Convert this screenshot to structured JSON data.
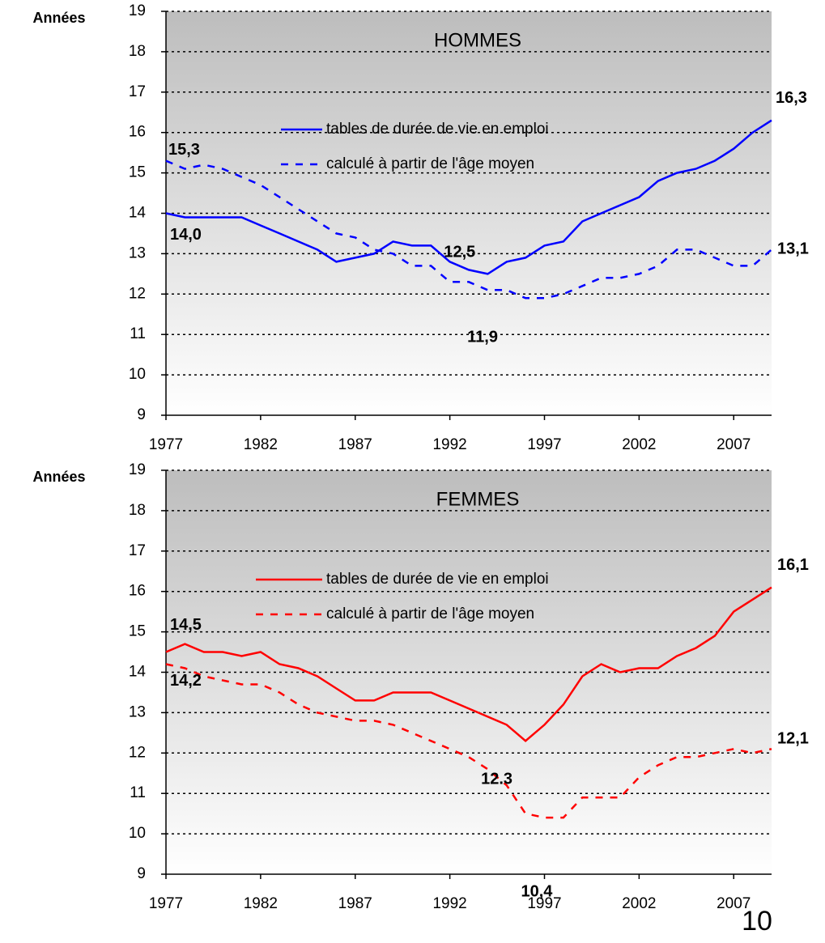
{
  "chart_data": [
    {
      "type": "line",
      "title": "HOMMES",
      "ylabel": "Années",
      "x": [
        1977,
        1978,
        1979,
        1980,
        1981,
        1982,
        1983,
        1984,
        1985,
        1986,
        1987,
        1988,
        1989,
        1990,
        1991,
        1992,
        1993,
        1994,
        1995,
        1996,
        1997,
        1998,
        1999,
        2000,
        2001,
        2002,
        2003,
        2004,
        2005,
        2006,
        2007,
        2008,
        2009
      ],
      "series": [
        {
          "name": "tables de durée de vie en emploi",
          "color": "#0000ff",
          "dashed": false,
          "values": [
            14.0,
            13.9,
            13.9,
            13.9,
            13.9,
            13.7,
            13.5,
            13.3,
            13.1,
            12.8,
            12.9,
            13.0,
            13.3,
            13.2,
            13.2,
            12.8,
            12.6,
            12.5,
            12.8,
            12.9,
            13.2,
            13.3,
            13.8,
            14.0,
            14.2,
            14.4,
            14.8,
            15.0,
            15.1,
            15.3,
            15.6,
            16.0,
            16.3
          ]
        },
        {
          "name": "calculé à partir de l'âge moyen",
          "color": "#0000ff",
          "dashed": true,
          "values": [
            15.3,
            15.1,
            15.2,
            15.1,
            14.9,
            14.7,
            14.4,
            14.1,
            13.8,
            13.5,
            13.4,
            13.1,
            13.0,
            12.7,
            12.7,
            12.3,
            12.3,
            12.1,
            12.1,
            11.9,
            11.9,
            12.0,
            12.2,
            12.4,
            12.4,
            12.5,
            12.7,
            13.1,
            13.1,
            12.9,
            12.7,
            12.7,
            13.1
          ]
        }
      ],
      "annotations": [
        {
          "text": "15,3",
          "x": 1977,
          "y": 15.3
        },
        {
          "text": "14,0",
          "x": 1977,
          "y": 14.0
        },
        {
          "text": "12,5",
          "x": 1994,
          "y": 12.5
        },
        {
          "text": "11,9",
          "x": 1996,
          "y": 11.9
        },
        {
          "text": "16,3",
          "x": 2009,
          "y": 16.3
        },
        {
          "text": "13,1",
          "x": 2009,
          "y": 13.1
        }
      ],
      "xlim": [
        1977,
        2009
      ],
      "xticks": [
        1977,
        1982,
        1987,
        1992,
        1997,
        2002,
        2007
      ],
      "ylim": [
        9,
        19
      ],
      "yticks": [
        9,
        10,
        11,
        12,
        13,
        14,
        15,
        16,
        17,
        18,
        19
      ],
      "grid": true
    },
    {
      "type": "line",
      "title": "FEMMES",
      "ylabel": "Années",
      "x": [
        1977,
        1978,
        1979,
        1980,
        1981,
        1982,
        1983,
        1984,
        1985,
        1986,
        1987,
        1988,
        1989,
        1990,
        1991,
        1992,
        1993,
        1994,
        1995,
        1996,
        1997,
        1998,
        1999,
        2000,
        2001,
        2002,
        2003,
        2004,
        2005,
        2006,
        2007,
        2008,
        2009
      ],
      "series": [
        {
          "name": "tables de durée de vie en emploi",
          "color": "#ff0000",
          "dashed": false,
          "values": [
            14.5,
            14.7,
            14.5,
            14.5,
            14.4,
            14.5,
            14.2,
            14.1,
            13.9,
            13.6,
            13.3,
            13.3,
            13.5,
            13.5,
            13.5,
            13.3,
            13.1,
            12.9,
            12.7,
            12.3,
            12.7,
            13.2,
            13.9,
            14.2,
            14.0,
            14.1,
            14.1,
            14.4,
            14.6,
            14.9,
            15.5,
            15.8,
            16.1
          ]
        },
        {
          "name": "calculé à partir de l'âge moyen",
          "color": "#ff0000",
          "dashed": true,
          "values": [
            14.2,
            14.1,
            13.9,
            13.8,
            13.7,
            13.7,
            13.5,
            13.2,
            13.0,
            12.9,
            12.8,
            12.8,
            12.7,
            12.5,
            12.3,
            12.1,
            11.9,
            11.6,
            11.2,
            10.5,
            10.4,
            10.4,
            10.9,
            10.9,
            10.9,
            11.4,
            11.7,
            11.9,
            11.9,
            12.0,
            12.1,
            12.0,
            12.1
          ]
        }
      ],
      "annotations": [
        {
          "text": "14,5",
          "x": 1977,
          "y": 14.5
        },
        {
          "text": "14,2",
          "x": 1977,
          "y": 14.2
        },
        {
          "text": "12.3",
          "x": 1996,
          "y": 12.3
        },
        {
          "text": "10,4",
          "x": 1997,
          "y": 10.4
        },
        {
          "text": "16,1",
          "x": 2009,
          "y": 16.1
        },
        {
          "text": "12,1",
          "x": 2009,
          "y": 12.1
        }
      ],
      "xlim": [
        1977,
        2009
      ],
      "xticks": [
        1977,
        1982,
        1987,
        1992,
        1997,
        2002,
        2007
      ],
      "ylim": [
        9,
        19
      ],
      "yticks": [
        9,
        10,
        11,
        12,
        13,
        14,
        15,
        16,
        17,
        18,
        19
      ],
      "grid": true
    }
  ],
  "page_number": "10"
}
